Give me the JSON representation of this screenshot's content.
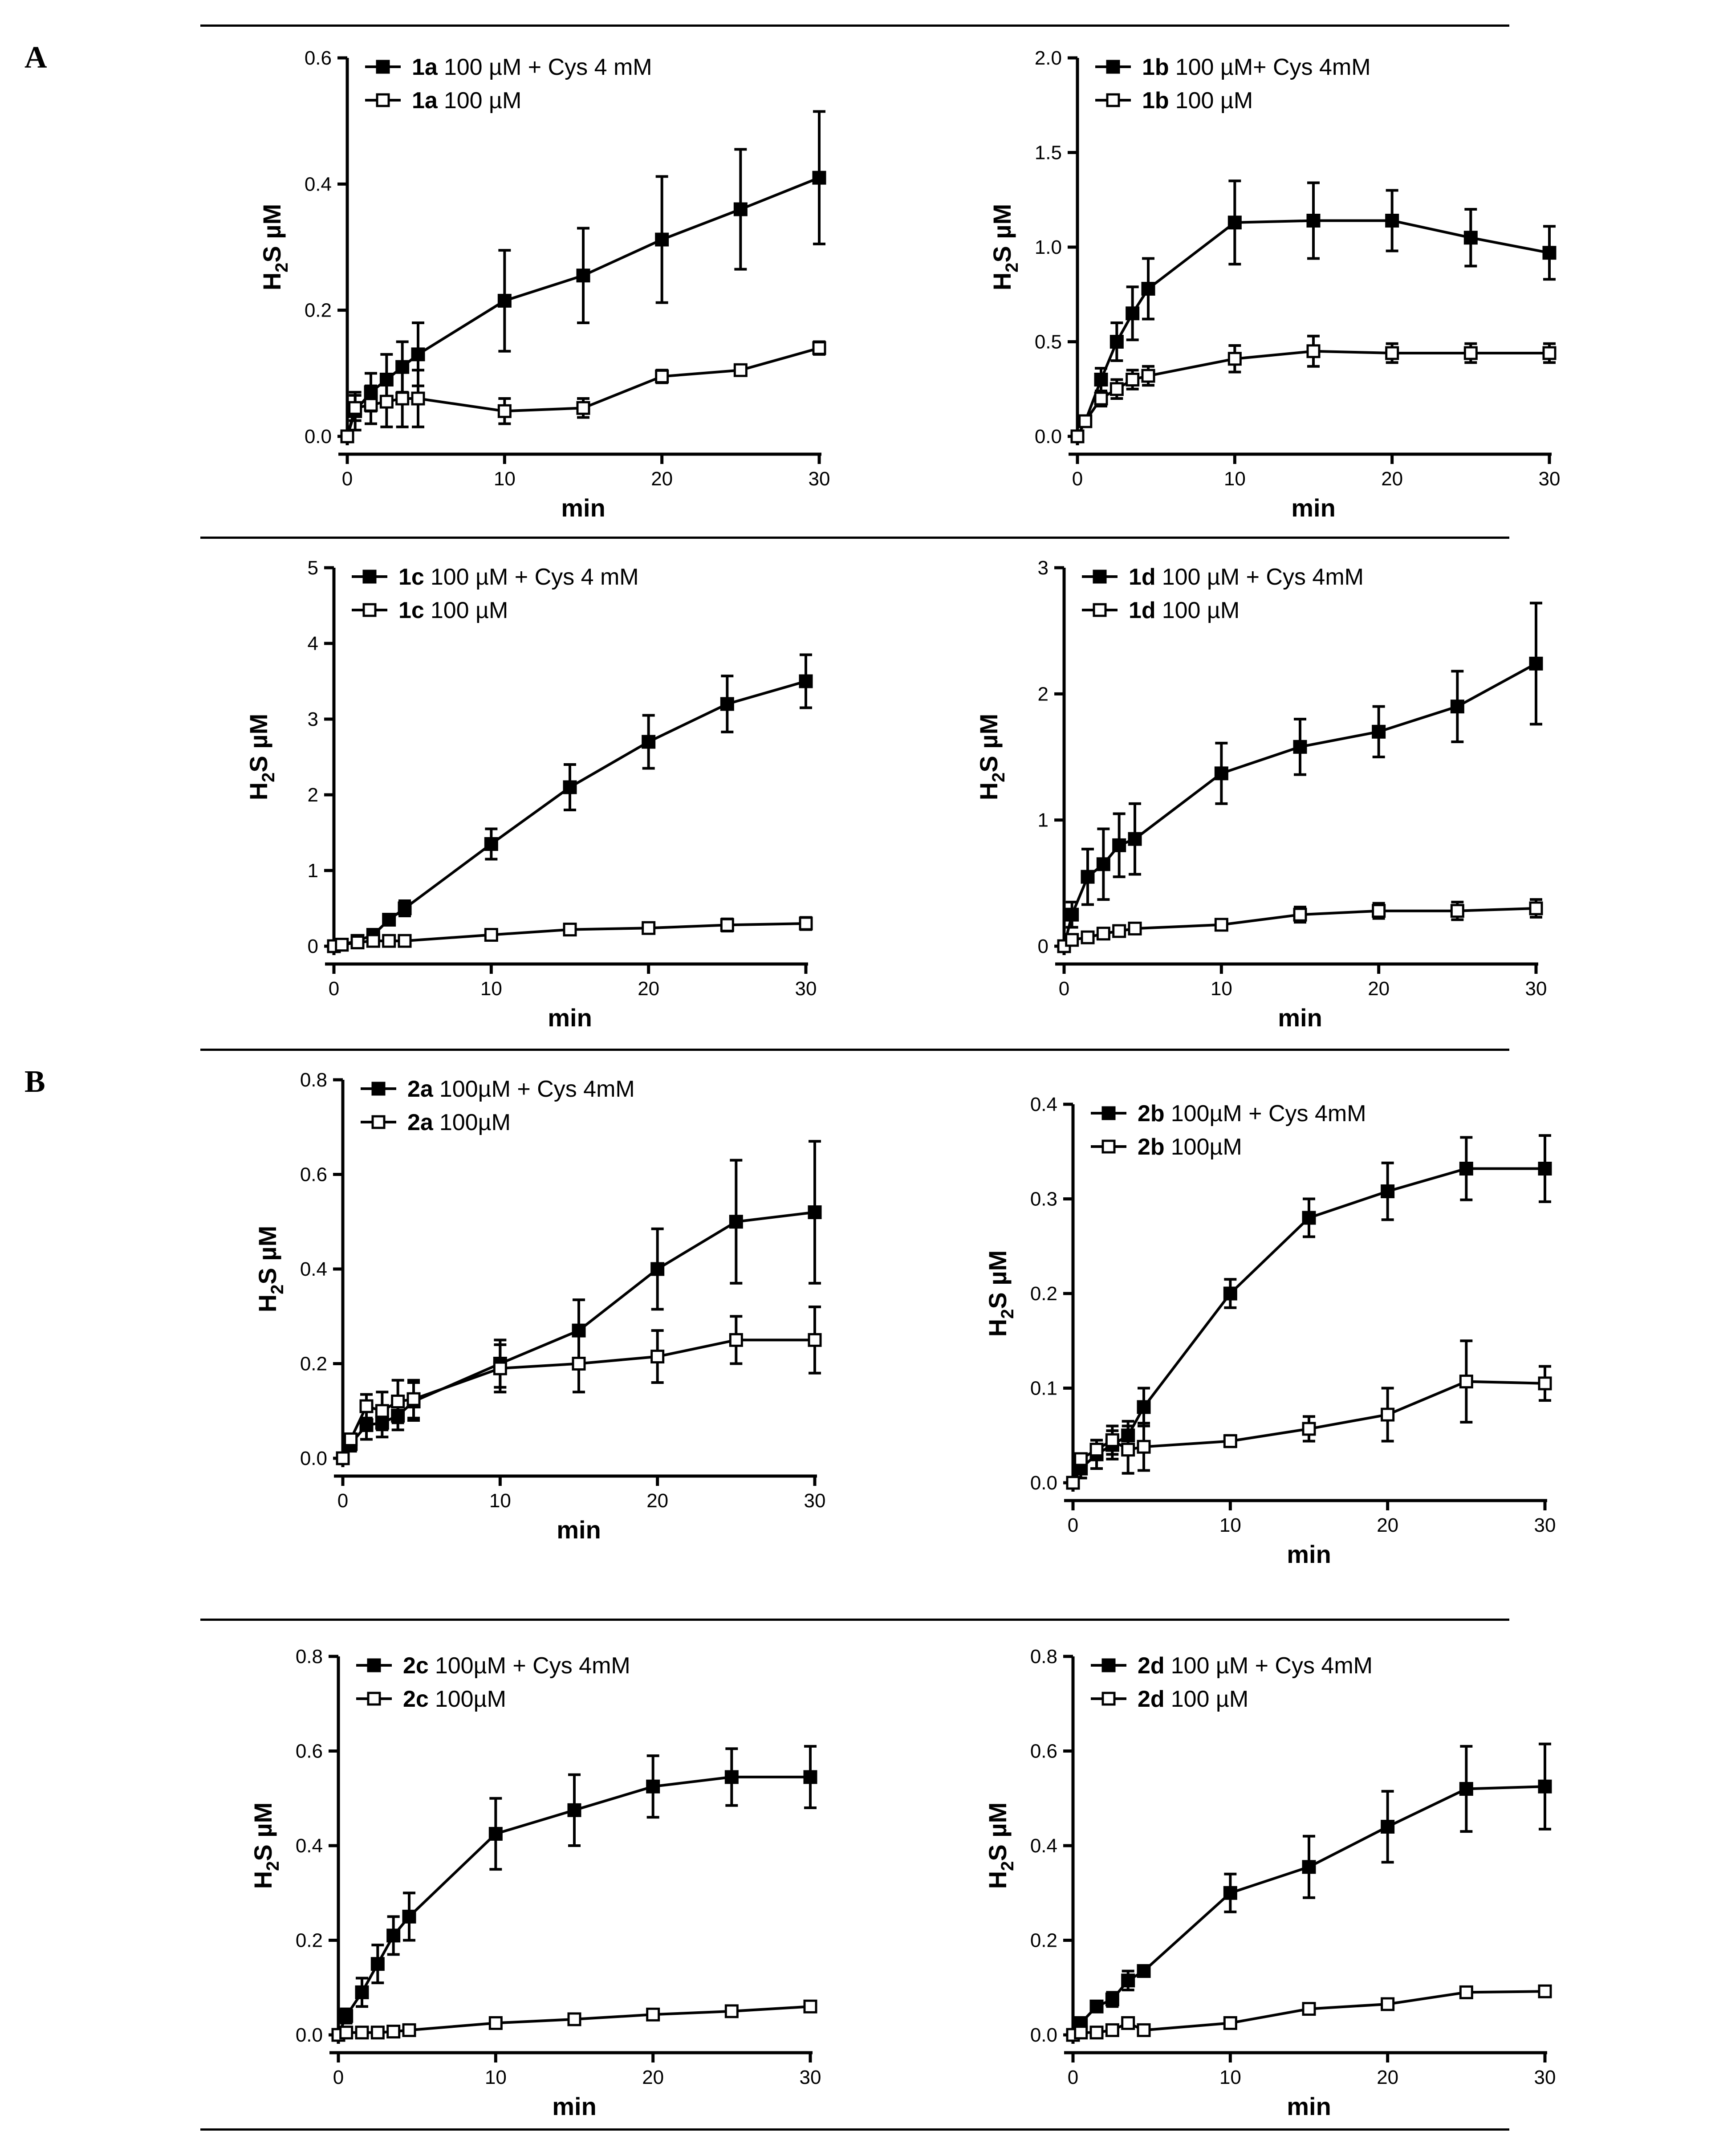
{
  "panels": [
    {
      "letter": "A"
    },
    {
      "letter": "B"
    }
  ],
  "chart_data": [
    {
      "type": "line",
      "panel": "A",
      "xlabel": "min",
      "ylabel": "H2S µM",
      "ylabel_main": "H",
      "ylabel_sub": "2",
      "ylabel_rest": "S µM",
      "xlim": [
        0,
        30
      ],
      "ylim": [
        0,
        0.6
      ],
      "xticks": [
        0,
        10,
        20,
        30
      ],
      "xtick_labels": [
        "0",
        "10",
        "20",
        "30"
      ],
      "yticks": [
        0,
        0.2,
        0.4,
        0.6
      ],
      "ytick_labels": [
        "0.0",
        "0.2",
        "0.4",
        "0.6"
      ],
      "x": [
        0,
        0.5,
        1.5,
        2.5,
        3.5,
        4.5,
        10,
        15,
        20,
        25,
        30
      ],
      "series": [
        {
          "compound": "1a",
          "label": "100 µM + Cys 4 mM",
          "marker": "filled-square",
          "values": [
            0,
            0.04,
            0.07,
            0.09,
            0.11,
            0.13,
            0.215,
            0.255,
            0.312,
            0.36,
            0.41
          ],
          "errors": [
            0,
            0.03,
            0.03,
            0.04,
            0.04,
            0.05,
            0.08,
            0.075,
            0.1,
            0.095,
            0.105
          ]
        },
        {
          "compound": "1a",
          "label": "100 µM",
          "marker": "open-square",
          "values": [
            0,
            0.045,
            0.05,
            0.055,
            0.06,
            0.06,
            0.04,
            0.045,
            0.095,
            0.105,
            0.14
          ],
          "errors": [
            0,
            0.02,
            0.03,
            0.04,
            0.045,
            0.045,
            0.02,
            0.015,
            0.01,
            0.005,
            0.01
          ]
        }
      ]
    },
    {
      "type": "line",
      "panel": "A",
      "xlabel": "min",
      "ylabel": "H2S µM",
      "ylabel_main": "H",
      "ylabel_sub": "2",
      "ylabel_rest": "S µM",
      "xlim": [
        0,
        30
      ],
      "ylim": [
        0,
        2.0
      ],
      "xticks": [
        0,
        10,
        20,
        30
      ],
      "xtick_labels": [
        "0",
        "10",
        "20",
        "30"
      ],
      "yticks": [
        0,
        0.5,
        1.0,
        1.5,
        2.0
      ],
      "ytick_labels": [
        "0.0",
        "0.5",
        "1.0",
        "1.5",
        "2.0"
      ],
      "x": [
        0,
        0.5,
        1.5,
        2.5,
        3.5,
        4.5,
        10,
        15,
        20,
        25,
        30
      ],
      "series": [
        {
          "compound": "1b",
          "label": "100 µM+ Cys 4mM",
          "marker": "filled-square",
          "values": [
            0,
            0.08,
            0.3,
            0.5,
            0.65,
            0.78,
            1.13,
            1.14,
            1.14,
            1.05,
            0.97
          ],
          "errors": [
            0,
            0.02,
            0.06,
            0.1,
            0.14,
            0.16,
            0.22,
            0.2,
            0.16,
            0.15,
            0.14
          ]
        },
        {
          "compound": "1b",
          "label": "100 µM",
          "marker": "open-square",
          "values": [
            0,
            0.08,
            0.2,
            0.25,
            0.3,
            0.32,
            0.41,
            0.45,
            0.44,
            0.44,
            0.44
          ],
          "errors": [
            0,
            0.02,
            0.04,
            0.05,
            0.05,
            0.05,
            0.07,
            0.08,
            0.05,
            0.05,
            0.05
          ]
        }
      ]
    },
    {
      "type": "line",
      "panel": "A",
      "xlabel": "min",
      "ylabel": "H2S µM",
      "ylabel_main": "H",
      "ylabel_sub": "2",
      "ylabel_rest": "S µM",
      "xlim": [
        0,
        30
      ],
      "ylim": [
        0,
        5
      ],
      "xticks": [
        0,
        10,
        20,
        30
      ],
      "xtick_labels": [
        "0",
        "10",
        "20",
        "30"
      ],
      "yticks": [
        0,
        1,
        2,
        3,
        4,
        5
      ],
      "ytick_labels": [
        "0",
        "1",
        "2",
        "3",
        "4",
        "5"
      ],
      "x": [
        0,
        0.5,
        1.5,
        2.5,
        3.5,
        4.5,
        10,
        15,
        20,
        25,
        30
      ],
      "series": [
        {
          "compound": "1c",
          "label": "100 µM + Cys 4 mM",
          "marker": "filled-square",
          "values": [
            0,
            0.02,
            0.07,
            0.15,
            0.35,
            0.5,
            1.35,
            2.1,
            2.7,
            3.2,
            3.5
          ],
          "errors": [
            0,
            0.02,
            0.03,
            0.05,
            0.07,
            0.1,
            0.2,
            0.3,
            0.35,
            0.37,
            0.35
          ]
        },
        {
          "compound": "1c",
          "label": "100 µM",
          "marker": "open-square",
          "values": [
            0,
            0.02,
            0.05,
            0.07,
            0.07,
            0.07,
            0.15,
            0.22,
            0.24,
            0.28,
            0.3
          ],
          "errors": [
            0,
            0.01,
            0.02,
            0.02,
            0.02,
            0.02,
            0.03,
            0.06,
            0.07,
            0.08,
            0.08
          ]
        }
      ]
    },
    {
      "type": "line",
      "panel": "A",
      "xlabel": "min",
      "ylabel": "H2S µM",
      "ylabel_main": "H",
      "ylabel_sub": "2",
      "ylabel_rest": "S µM",
      "xlim": [
        0,
        30
      ],
      "ylim": [
        0,
        3
      ],
      "xticks": [
        0,
        10,
        20,
        30
      ],
      "xtick_labels": [
        "0",
        "10",
        "20",
        "30"
      ],
      "yticks": [
        0,
        1,
        2,
        3
      ],
      "ytick_labels": [
        "0",
        "1",
        "2",
        "3"
      ],
      "x": [
        0,
        0.5,
        1.5,
        2.5,
        3.5,
        4.5,
        10,
        15,
        20,
        25,
        30
      ],
      "series": [
        {
          "compound": "1d",
          "label": "100 µM + Cys 4mM",
          "marker": "filled-square",
          "values": [
            0,
            0.25,
            0.55,
            0.65,
            0.8,
            0.85,
            1.37,
            1.58,
            1.7,
            1.9,
            2.24
          ],
          "errors": [
            0,
            0.1,
            0.22,
            0.28,
            0.25,
            0.28,
            0.24,
            0.22,
            0.2,
            0.28,
            0.48
          ]
        },
        {
          "compound": "1d",
          "label": "100 µM",
          "marker": "open-square",
          "values": [
            0,
            0.05,
            0.07,
            0.1,
            0.12,
            0.14,
            0.17,
            0.25,
            0.28,
            0.28,
            0.3
          ],
          "errors": [
            0,
            0.02,
            0.02,
            0.02,
            0.02,
            0.02,
            0.02,
            0.06,
            0.06,
            0.07,
            0.07
          ]
        }
      ]
    },
    {
      "type": "line",
      "panel": "B",
      "xlabel": "min",
      "ylabel": "H2S µM",
      "ylabel_main": "H",
      "ylabel_sub": "2",
      "ylabel_rest": "S µM",
      "xlim": [
        0,
        30
      ],
      "ylim": [
        0,
        0.8
      ],
      "xticks": [
        0,
        10,
        20,
        30
      ],
      "xtick_labels": [
        "0",
        "10",
        "20",
        "30"
      ],
      "yticks": [
        0,
        0.2,
        0.4,
        0.6,
        0.8
      ],
      "ytick_labels": [
        "0.0",
        "0.2",
        "0.4",
        "0.6",
        "0.8"
      ],
      "x": [
        0,
        0.5,
        1.5,
        2.5,
        3.5,
        4.5,
        10,
        15,
        20,
        25,
        30
      ],
      "series": [
        {
          "compound": "2a",
          "label": "100µM + Cys 4mM",
          "marker": "filled-square",
          "values": [
            0,
            0.03,
            0.07,
            0.075,
            0.09,
            0.12,
            0.2,
            0.27,
            0.4,
            0.5,
            0.52
          ],
          "errors": [
            0,
            0.015,
            0.03,
            0.03,
            0.03,
            0.04,
            0.05,
            0.065,
            0.085,
            0.13,
            0.15
          ]
        },
        {
          "compound": "2a",
          "label": "100µM",
          "marker": "open-square",
          "values": [
            0,
            0.04,
            0.11,
            0.1,
            0.12,
            0.125,
            0.19,
            0.2,
            0.215,
            0.25,
            0.25
          ],
          "errors": [
            0,
            0.01,
            0.025,
            0.04,
            0.045,
            0.04,
            0.05,
            0.06,
            0.055,
            0.05,
            0.07
          ]
        }
      ]
    },
    {
      "type": "line",
      "panel": "B",
      "xlabel": "min",
      "ylabel": "H2S µM",
      "ylabel_main": "H",
      "ylabel_sub": "2",
      "ylabel_rest": "S µM",
      "xlim": [
        0,
        30
      ],
      "ylim": [
        0,
        0.4
      ],
      "xticks": [
        0,
        10,
        20,
        30
      ],
      "xtick_labels": [
        "0",
        "10",
        "20",
        "30"
      ],
      "yticks": [
        0,
        0.1,
        0.2,
        0.3,
        0.4
      ],
      "ytick_labels": [
        "0.0",
        "0.1",
        "0.2",
        "0.3",
        "0.4"
      ],
      "x": [
        0,
        0.5,
        1.5,
        2.5,
        3.5,
        4.5,
        10,
        15,
        20,
        25,
        30
      ],
      "series": [
        {
          "compound": "2b",
          "label": "100µM + Cys 4mM",
          "marker": "filled-square",
          "values": [
            0,
            0.015,
            0.03,
            0.04,
            0.05,
            0.08,
            0.2,
            0.28,
            0.308,
            0.332,
            0.332
          ],
          "errors": [
            0,
            0.01,
            0.015,
            0.015,
            0.015,
            0.02,
            0.015,
            0.02,
            0.03,
            0.033,
            0.035
          ]
        },
        {
          "compound": "2b",
          "label": "100µM",
          "marker": "open-square",
          "values": [
            0,
            0.025,
            0.035,
            0.045,
            0.035,
            0.038,
            0.044,
            0.057,
            0.072,
            0.107,
            0.105
          ],
          "errors": [
            0,
            0.005,
            0.01,
            0.015,
            0.025,
            0.025,
            0.006,
            0.013,
            0.028,
            0.043,
            0.018
          ]
        }
      ]
    },
    {
      "type": "line",
      "panel": "B",
      "xlabel": "min",
      "ylabel": "H2S µM",
      "ylabel_main": "H",
      "ylabel_sub": "2",
      "ylabel_rest": "S µM",
      "xlim": [
        0,
        30
      ],
      "ylim": [
        0,
        0.8
      ],
      "xticks": [
        0,
        10,
        20,
        30
      ],
      "xtick_labels": [
        "0",
        "10",
        "20",
        "30"
      ],
      "yticks": [
        0,
        0.2,
        0.4,
        0.6,
        0.8
      ],
      "ytick_labels": [
        "0.0",
        "0.2",
        "0.4",
        "0.6",
        "0.8"
      ],
      "x": [
        0,
        0.5,
        1.5,
        2.5,
        3.5,
        4.5,
        10,
        15,
        20,
        25,
        30
      ],
      "series": [
        {
          "compound": "2c",
          "label": "100µM + Cys 4mM",
          "marker": "filled-square",
          "values": [
            0,
            0.04,
            0.09,
            0.15,
            0.21,
            0.25,
            0.425,
            0.475,
            0.525,
            0.545,
            0.545
          ],
          "errors": [
            0,
            0.015,
            0.03,
            0.04,
            0.04,
            0.05,
            0.075,
            0.075,
            0.065,
            0.06,
            0.065
          ]
        },
        {
          "compound": "2c",
          "label": "100µM",
          "marker": "open-square",
          "values": [
            0,
            0.005,
            0.005,
            0.005,
            0.007,
            0.01,
            0.025,
            0.033,
            0.043,
            0.05,
            0.06
          ],
          "errors": [
            0,
            0.002,
            0.002,
            0.002,
            0.002,
            0.002,
            0.004,
            0.004,
            0.004,
            0.005,
            0.005
          ]
        }
      ]
    },
    {
      "type": "line",
      "panel": "B",
      "xlabel": "min",
      "ylabel": "H2S µM",
      "ylabel_main": "H",
      "ylabel_sub": "2",
      "ylabel_rest": "S µM",
      "xlim": [
        0,
        30
      ],
      "ylim": [
        0,
        0.8
      ],
      "xticks": [
        0,
        10,
        20,
        30
      ],
      "xtick_labels": [
        "0",
        "10",
        "20",
        "30"
      ],
      "yticks": [
        0,
        0.2,
        0.4,
        0.6,
        0.8
      ],
      "ytick_labels": [
        "0.0",
        "0.2",
        "0.4",
        "0.6",
        "0.8"
      ],
      "x": [
        0,
        0.5,
        1.5,
        2.5,
        3.5,
        4.5,
        10,
        15,
        20,
        25,
        30
      ],
      "series": [
        {
          "compound": "2d",
          "label": "100 µM + Cys 4mM",
          "marker": "filled-square",
          "values": [
            0,
            0.025,
            0.06,
            0.075,
            0.115,
            0.135,
            0.3,
            0.355,
            0.44,
            0.52,
            0.525
          ],
          "errors": [
            0,
            0.01,
            0.01,
            0.015,
            0.02,
            0.01,
            0.04,
            0.065,
            0.075,
            0.09,
            0.09
          ]
        },
        {
          "compound": "2d",
          "label": "100 µM",
          "marker": "open-square",
          "values": [
            0,
            0.005,
            0.005,
            0.01,
            0.025,
            0.01,
            0.025,
            0.055,
            0.065,
            0.09,
            0.092
          ],
          "errors": [
            0,
            0.002,
            0.002,
            0.002,
            0.006,
            0.003,
            0.004,
            0.005,
            0.006,
            0.006,
            0.006
          ]
        }
      ]
    }
  ]
}
